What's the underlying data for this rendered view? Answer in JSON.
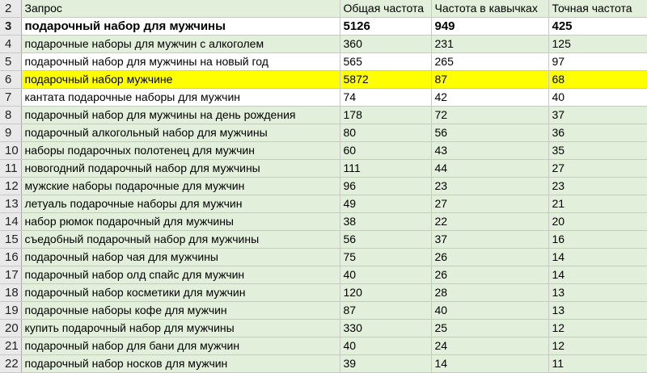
{
  "columns": [
    "Запрос",
    "Общая частота",
    "Частота в кавычках",
    "Точная частота"
  ],
  "header_row_number": "2",
  "rows": [
    {
      "n": "3",
      "query": "подарочный набор для мужчины",
      "total": "5126",
      "quoted": "949",
      "exact": "425",
      "style": "bold"
    },
    {
      "n": "4",
      "query": "подарочные наборы для мужчин с алкоголем",
      "total": "360",
      "quoted": "231",
      "exact": "125",
      "style": "green"
    },
    {
      "n": "5",
      "query": "подарочный набор для мужчины на новый год",
      "total": "565",
      "quoted": "265",
      "exact": "97",
      "style": "white"
    },
    {
      "n": "6",
      "query": "подарочный набор мужчине",
      "total": "5872",
      "quoted": "87",
      "exact": "68",
      "style": "yellow"
    },
    {
      "n": "7",
      "query": "кантата подарочные наборы для мужчин",
      "total": "74",
      "quoted": "42",
      "exact": "40",
      "style": "white"
    },
    {
      "n": "8",
      "query": "подарочный набор для мужчины на день рождения",
      "total": "178",
      "quoted": "72",
      "exact": "37",
      "style": "green"
    },
    {
      "n": "9",
      "query": "подарочный алкогольный набор для мужчины",
      "total": "80",
      "quoted": "56",
      "exact": "36",
      "style": "green"
    },
    {
      "n": "10",
      "query": "наборы подарочных полотенец для мужчин",
      "total": "60",
      "quoted": "43",
      "exact": "35",
      "style": "green"
    },
    {
      "n": "11",
      "query": "новогодний подарочный набор для мужчины",
      "total": "111",
      "quoted": "44",
      "exact": "27",
      "style": "green"
    },
    {
      "n": "12",
      "query": "мужские наборы подарочные для мужчин",
      "total": "96",
      "quoted": "23",
      "exact": "23",
      "style": "green"
    },
    {
      "n": "13",
      "query": "летуаль подарочные наборы для мужчин",
      "total": "49",
      "quoted": "27",
      "exact": "21",
      "style": "green"
    },
    {
      "n": "14",
      "query": "набор рюмок подарочный для мужчины",
      "total": "38",
      "quoted": "22",
      "exact": "20",
      "style": "green"
    },
    {
      "n": "15",
      "query": "съедобный подарочный набор для мужчины",
      "total": "56",
      "quoted": "37",
      "exact": "16",
      "style": "green"
    },
    {
      "n": "16",
      "query": "подарочный набор чая для мужчины",
      "total": "75",
      "quoted": "26",
      "exact": "14",
      "style": "green"
    },
    {
      "n": "17",
      "query": "подарочный набор олд спайс для мужчин",
      "total": "40",
      "quoted": "26",
      "exact": "14",
      "style": "green"
    },
    {
      "n": "18",
      "query": "подарочный набор косметики для мужчин",
      "total": "120",
      "quoted": "28",
      "exact": "13",
      "style": "green"
    },
    {
      "n": "19",
      "query": "подарочные наборы кофе для мужчин",
      "total": "87",
      "quoted": "40",
      "exact": "13",
      "style": "green"
    },
    {
      "n": "20",
      "query": "купить подарочный набор для мужчины",
      "total": "330",
      "quoted": "25",
      "exact": "12",
      "style": "green"
    },
    {
      "n": "21",
      "query": "подарочный набор для бани для мужчин",
      "total": "40",
      "quoted": "24",
      "exact": "12",
      "style": "green"
    },
    {
      "n": "22",
      "query": "подарочный набор носков для мужчин",
      "total": "39",
      "quoted": "14",
      "exact": "11",
      "style": "green"
    }
  ],
  "colors": {
    "green": "#e2efda",
    "highlight": "#ffff00",
    "rownum_bg": "#e9e9e9",
    "grid": "#c8c8c8"
  }
}
